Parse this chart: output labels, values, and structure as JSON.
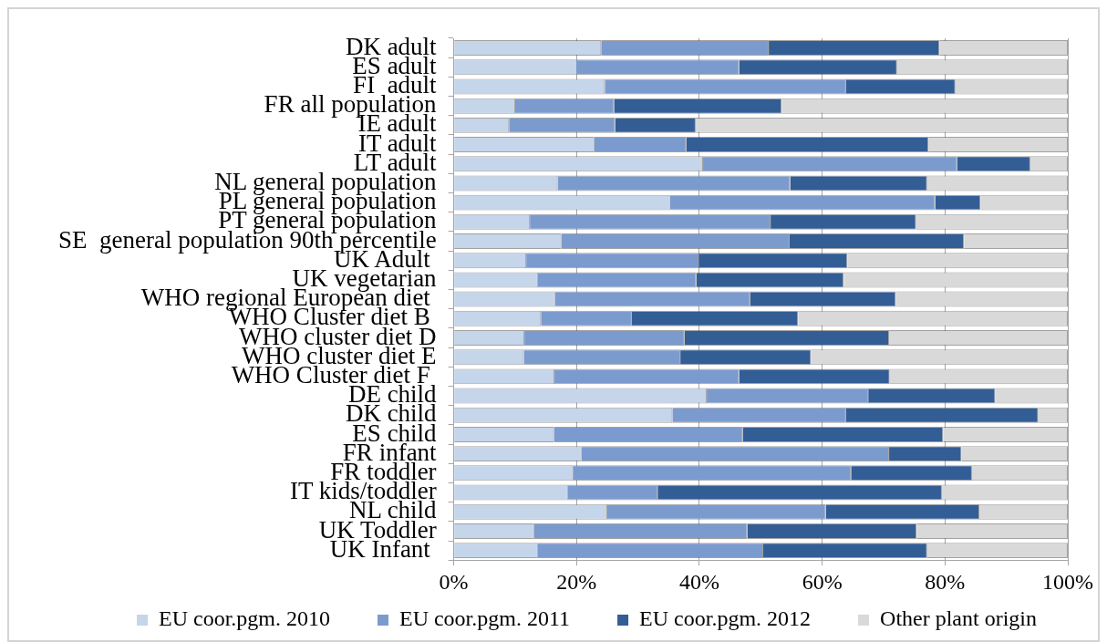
{
  "chart_data": {
    "type": "bar",
    "orientation": "horizontal",
    "stacked": true,
    "categories": [
      "DK adult",
      "ES adult",
      "FI  adult",
      "FR all population",
      "IE adult",
      "IT adult",
      "LT adult",
      "NL general population",
      "PL general population",
      "PT general population",
      "SE  general population 90th percentile",
      "UK Adult ",
      "UK vegetarian",
      "WHO regional European diet ",
      "WHO Cluster diet B ",
      "WHO cluster diet D",
      "WHO cluster diet E",
      "WHO Cluster diet F ",
      "DE child",
      "DK child",
      "ES child",
      "FR infant",
      "FR toddler",
      "IT kids/toddler",
      "NL child",
      "UK Toddler",
      "UK Infant "
    ],
    "series": [
      {
        "name": "EU coor.pgm. 2010",
        "color": "#c5d5ea",
        "values": [
          24.0,
          19.9,
          24.6,
          10.0,
          9.0,
          22.9,
          40.6,
          16.9,
          35.2,
          12.4,
          17.5,
          11.8,
          13.7,
          16.5,
          14.2,
          11.5,
          11.4,
          16.4,
          41.2,
          35.6,
          16.3,
          20.8,
          19.5,
          18.6,
          25.0,
          13.1,
          13.7
        ]
      },
      {
        "name": "EU coor.pgm. 2011",
        "color": "#7b9bcf",
        "values": [
          27.3,
          26.6,
          39.3,
          16.1,
          17.3,
          15.0,
          41.4,
          37.9,
          43.2,
          39.2,
          37.2,
          28.2,
          25.8,
          31.8,
          14.8,
          26.1,
          25.5,
          30.1,
          26.3,
          28.3,
          30.8,
          50.1,
          45.2,
          14.6,
          35.6,
          34.7,
          36.7
        ]
      },
      {
        "name": "EU coor.pgm. 2012",
        "color": "#335d95",
        "values": [
          27.8,
          25.7,
          17.8,
          27.3,
          13.1,
          39.4,
          11.9,
          22.3,
          7.4,
          23.7,
          28.4,
          24.1,
          24.0,
          23.7,
          27.1,
          33.3,
          21.3,
          24.5,
          20.7,
          31.3,
          32.6,
          11.8,
          19.7,
          46.3,
          25.0,
          27.6,
          26.7
        ]
      },
      {
        "name": "Other plant origin",
        "color": "#d9d9d9",
        "values": [
          20.9,
          27.8,
          18.3,
          46.6,
          60.6,
          22.7,
          6.1,
          22.9,
          14.2,
          24.7,
          16.9,
          35.9,
          36.5,
          28.0,
          43.9,
          29.1,
          41.8,
          29.0,
          11.8,
          4.8,
          20.3,
          17.3,
          15.6,
          20.5,
          14.4,
          24.6,
          22.9
        ]
      }
    ],
    "xlim": [
      0,
      100
    ],
    "xticks": [
      {
        "value": 0,
        "label": "0%"
      },
      {
        "value": 20,
        "label": "20%"
      },
      {
        "value": 40,
        "label": "40%"
      },
      {
        "value": 60,
        "label": "60%"
      },
      {
        "value": 80,
        "label": "80%"
      },
      {
        "value": 100,
        "label": "100%"
      }
    ],
    "grid": "x",
    "legend": "bottom"
  }
}
